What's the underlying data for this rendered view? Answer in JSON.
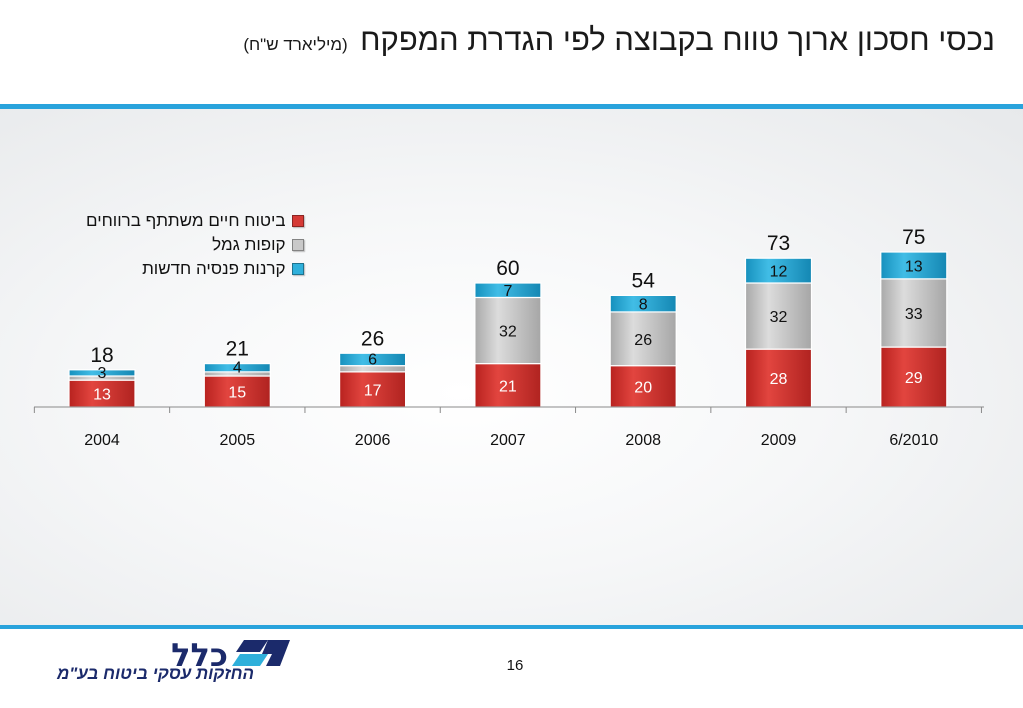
{
  "slide": {
    "title": "נכסי חסכון ארוך טווח בקבוצה לפי הגדרת המפקח",
    "subtitle": "(מיליארד ש\"ח)",
    "page_number": "16"
  },
  "logo": {
    "tagline": "החזקות עסקי ביטוח בע\"מ",
    "mark": "כלל"
  },
  "colors": {
    "accent_rule": "#29a3dc",
    "life_insurance": "#d63a36",
    "provident_funds": "#c9c9c9",
    "pension_funds": "#2fb0db",
    "logo_blue": "#1b2a6b"
  },
  "chart_data": {
    "type": "bar",
    "stacked": true,
    "categories": [
      "2004",
      "2005",
      "2006",
      "2007",
      "2008",
      "2009",
      "6/2010"
    ],
    "series": [
      {
        "name": "ביטוח חיים משתתף ברווחים",
        "color": "#d63a36",
        "values": [
          13,
          15,
          17,
          21,
          20,
          28,
          29
        ]
      },
      {
        "name": "קופות גמל",
        "color": "#c9c9c9",
        "values": [
          2,
          2,
          3,
          32,
          26,
          32,
          33
        ]
      },
      {
        "name": "קרנות פנסיה חדשות",
        "color": "#2fb0db",
        "values": [
          3,
          4,
          6,
          7,
          8,
          12,
          13
        ]
      }
    ],
    "segment_labels": [
      [
        "13",
        "15",
        "17",
        "21",
        "20",
        "28",
        "29"
      ],
      [
        "",
        "",
        "",
        "32",
        "26",
        "32",
        "33"
      ],
      [
        "3",
        "4",
        "6",
        "7",
        "8",
        "12",
        "13"
      ]
    ],
    "totals": [
      18,
      21,
      26,
      60,
      54,
      73,
      75
    ],
    "title": "",
    "xlabel": "",
    "ylabel": "",
    "ylim": [
      0,
      75
    ],
    "grid": false,
    "legend_position": "top-left"
  }
}
